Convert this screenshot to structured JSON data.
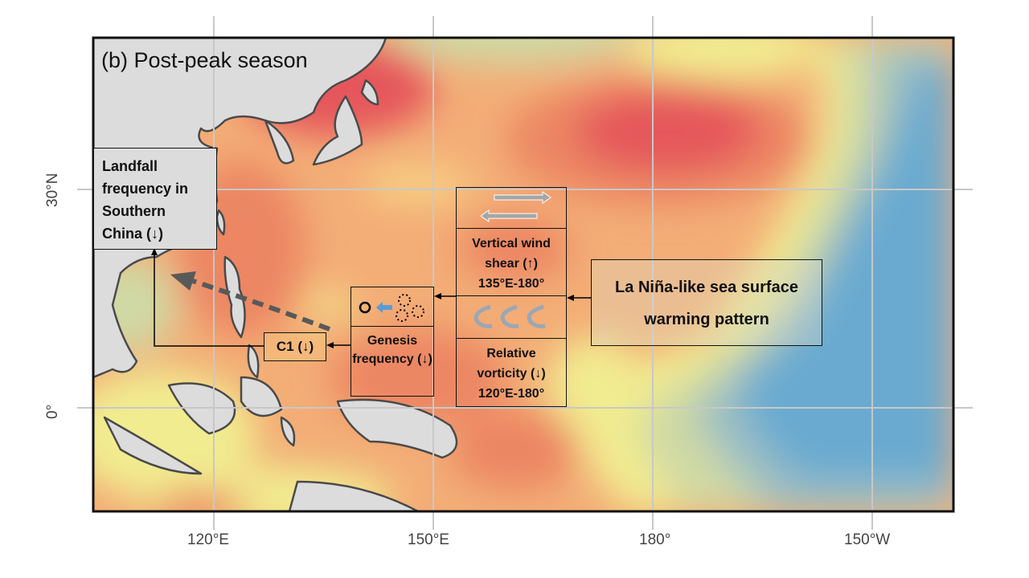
{
  "panel_title": "(b) Post-peak season",
  "axes": {
    "x_ticks": [
      "120°E",
      "150°E",
      "180°",
      "150°W"
    ],
    "y_ticks": [
      "30°N",
      "0°"
    ]
  },
  "boxes": {
    "landfall": "Landfall frequency in Southern China (↓)",
    "c1": "C1 (↓)",
    "genesis": "Genesis frequency (↓)",
    "shear": [
      "Vertical wind",
      "shear (↑)",
      "135°E-180°"
    ],
    "vorticity": [
      "Relative",
      "vorticity (↓)",
      "120°E-180°"
    ],
    "lanina": [
      "La Niña-like sea surface",
      "warming pattern"
    ]
  },
  "colors": {
    "strong_warm": "#e5575b",
    "warm": "#ec8663",
    "moderate": "#f3ad76",
    "weak": "#f7d084",
    "neutral": "#f1ec90",
    "cool": "#cfd9a4",
    "cooler": "#9dbfc2",
    "cold": "#6aaad0",
    "land": "#dcdcdc",
    "arrow_blue": "#5b9bd5"
  }
}
